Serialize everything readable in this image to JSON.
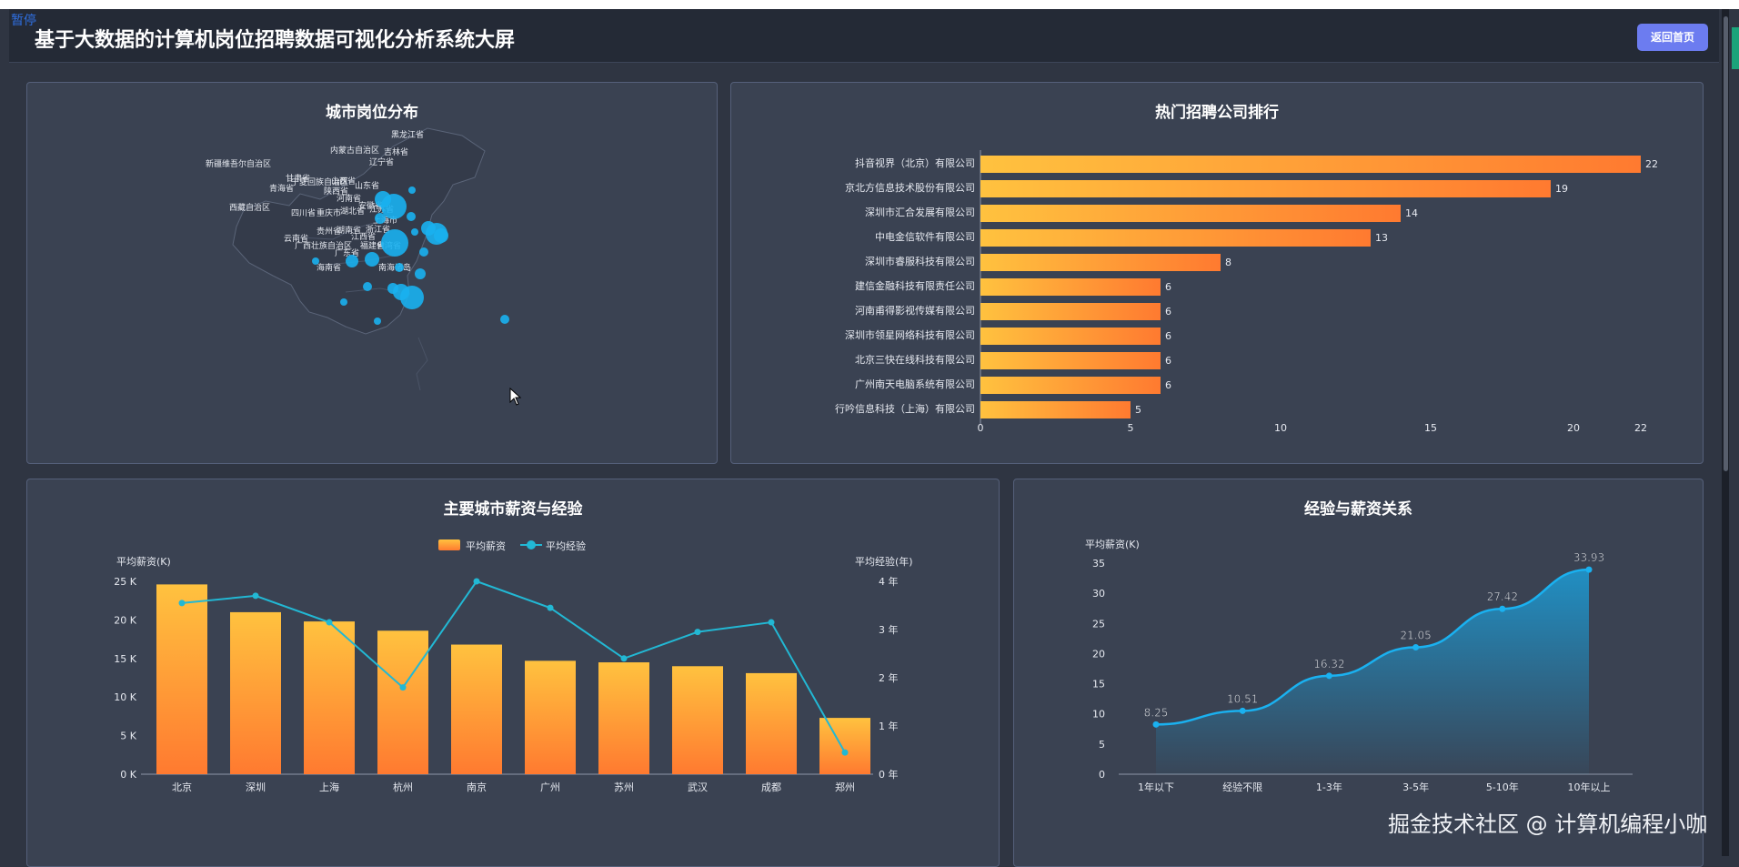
{
  "app": {
    "pause_tag": "暂停",
    "title": "基于大数据的计算机岗位招聘数据可视化分析系统大屏",
    "home_button": "返回首页",
    "watermark": "掘金技术社区 @ 计算机编程小咖"
  },
  "panels": {
    "map": {
      "title": "城市岗位分布"
    },
    "companies": {
      "title": "热门招聘公司排行"
    },
    "city_salary": {
      "title": "主要城市薪资与经验"
    },
    "exp_salary": {
      "title": "经验与薪资关系"
    }
  },
  "map_labels": [
    "黑龙江省",
    "吉林省",
    "内蒙古自治区",
    "辽宁省",
    "新疆维吾尔自治区",
    "甘肃省",
    "宁夏回族自治区",
    "山西省",
    "山东省",
    "青海省",
    "陕西省",
    "河南省",
    "西藏自治区",
    "四川省",
    "重庆市",
    "湖北省",
    "安徽省",
    "江苏省",
    "上海市",
    "浙江省",
    "湖南省",
    "贵州省",
    "江西省",
    "云南省",
    "广西壮族自治区",
    "广东省",
    "福建省",
    "台湾省",
    "海南省",
    "南海诸岛"
  ],
  "colors": {
    "bar_start": "#ffc23f",
    "bar_end": "#ff7a30",
    "line": "#22b8d4",
    "area": "#1f93c9",
    "dot": "#1ab1f0"
  },
  "chart_data": [
    {
      "type": "bar",
      "orientation": "horizontal",
      "title": "热门招聘公司排行",
      "categories": [
        "抖音视界（北京）有限公司",
        "京北方信息技术股份有限公司",
        "深圳市汇合发展有限公司",
        "中电金信软件有限公司",
        "深圳市睿服科技有限公司",
        "建信金融科技有限责任公司",
        "河南甫得影视传媒有限公司",
        "深圳市领星网络科技有限公司",
        "北京三快在线科技有限公司",
        "广州南天电脑系统有限公司",
        "行吟信息科技（上海）有限公司"
      ],
      "values": [
        22,
        19,
        14,
        13,
        8,
        6,
        6,
        6,
        6,
        6,
        5
      ],
      "xticks": [
        0,
        5,
        10,
        15,
        20,
        22
      ],
      "xlim": [
        0,
        22
      ]
    },
    {
      "type": "bar",
      "title": "主要城市薪资与经验",
      "categories": [
        "北京",
        "深圳",
        "上海",
        "杭州",
        "南京",
        "广州",
        "苏州",
        "武汉",
        "成都",
        "郑州"
      ],
      "series": [
        {
          "name": "平均薪资",
          "type": "bar",
          "values": [
            24.6,
            21.0,
            19.8,
            18.6,
            16.8,
            14.7,
            14.5,
            14.0,
            13.1,
            7.3
          ]
        },
        {
          "name": "平均经验",
          "type": "line",
          "values": [
            3.55,
            3.7,
            3.15,
            1.8,
            4.0,
            3.45,
            2.4,
            2.95,
            3.15,
            0.45
          ]
        }
      ],
      "ylabel": "平均薪资(K)",
      "ylabel_right": "平均经验(年)",
      "yticks": [
        "0 K",
        "5 K",
        "10 K",
        "15 K",
        "20 K",
        "25 K"
      ],
      "yticks_right": [
        "0 年",
        "1 年",
        "2 年",
        "3 年",
        "4 年"
      ],
      "ylim": [
        0,
        25
      ],
      "ylim_right": [
        0,
        4
      ]
    },
    {
      "type": "area",
      "title": "经验与薪资关系",
      "categories": [
        "1年以下",
        "经验不限",
        "1-3年",
        "3-5年",
        "5-10年",
        "10年以上"
      ],
      "values": [
        8.25,
        10.51,
        16.32,
        21.05,
        27.42,
        33.93
      ],
      "ylabel": "平均薪资(K)",
      "yticks": [
        0,
        5,
        10,
        15,
        20,
        25,
        30,
        35
      ],
      "ylim": [
        0,
        35
      ]
    }
  ]
}
